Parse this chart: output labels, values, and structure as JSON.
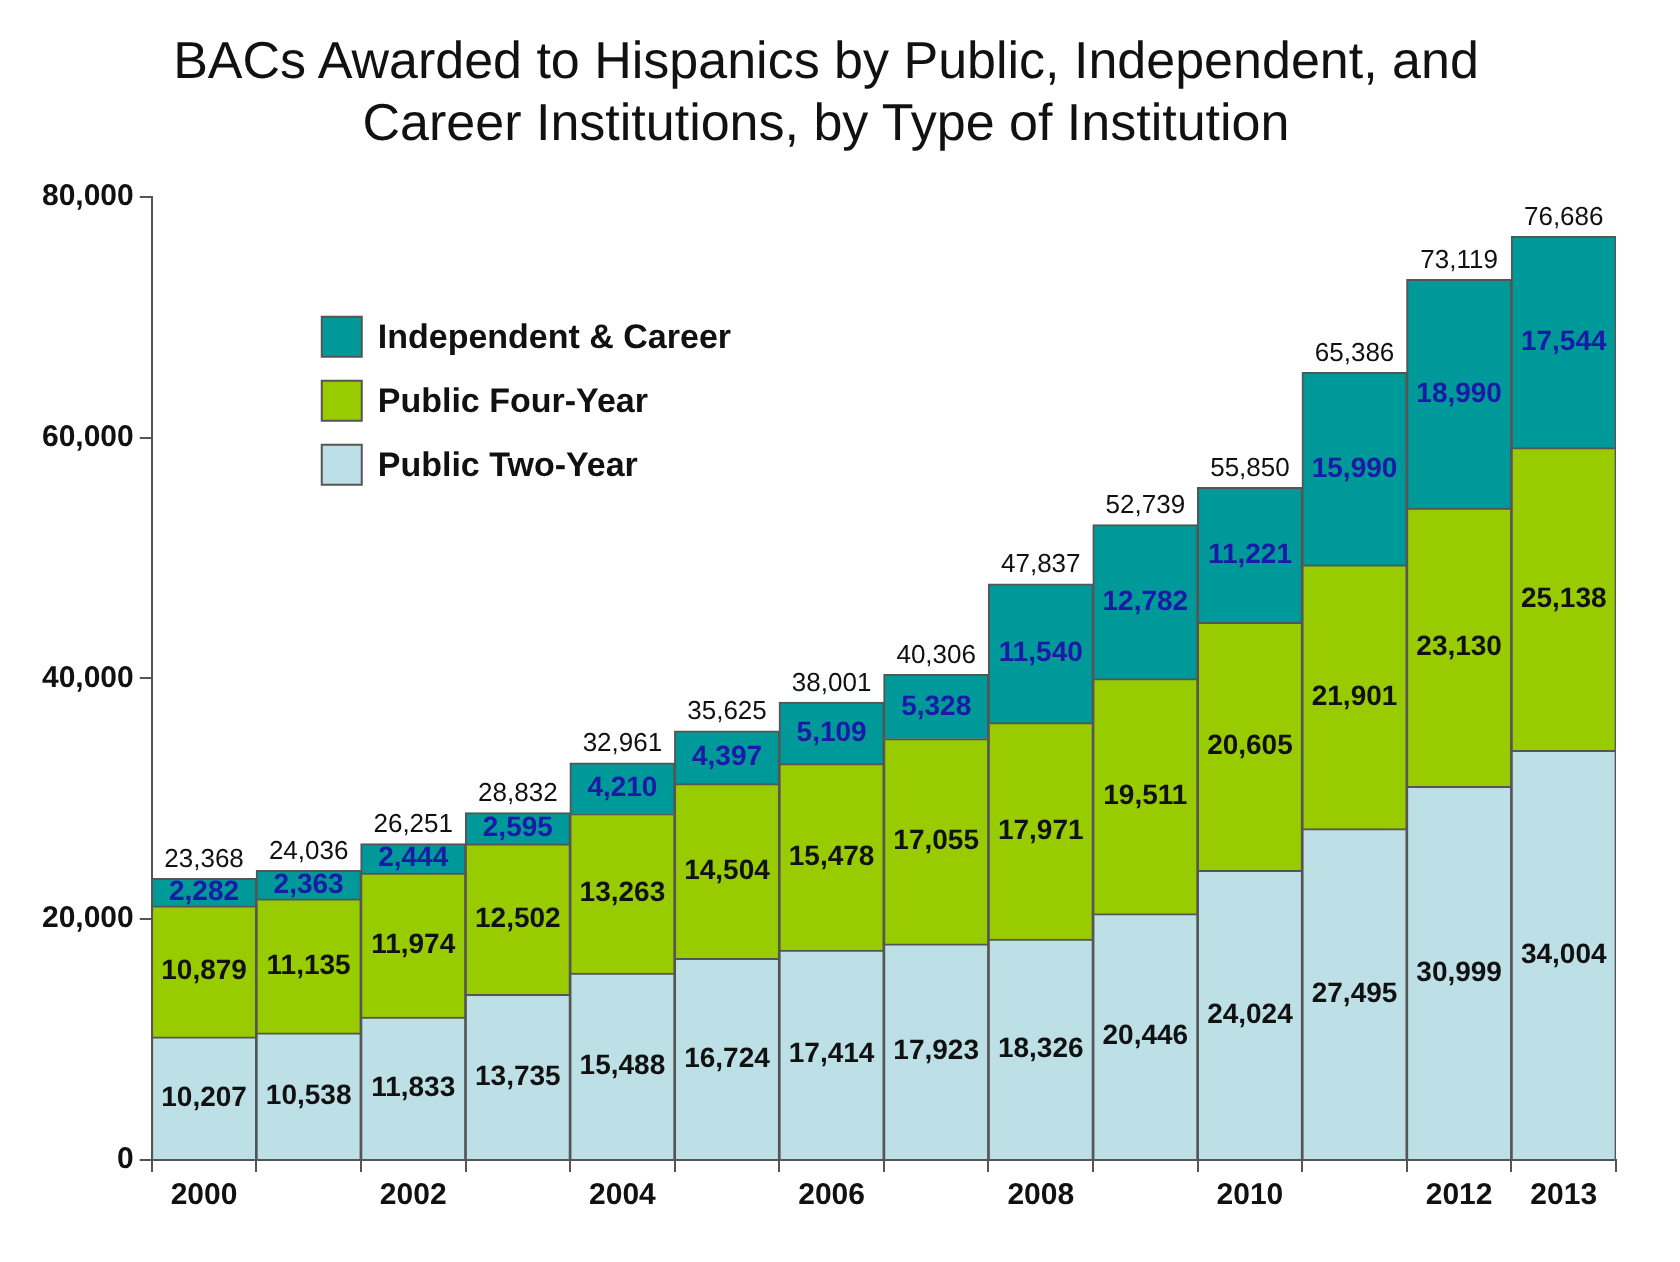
{
  "chart_data": {
    "type": "bar",
    "title": "BACs Awarded to Hispanics by Public, Independent, and Career Institutions, by Type of Institution",
    "stacked": true,
    "categories": [
      "2000",
      null,
      "2002",
      null,
      "2004",
      null,
      "2006",
      null,
      "2008",
      null,
      "2010",
      null,
      "2012",
      "2013"
    ],
    "series": [
      {
        "name": "Public Two-Year",
        "color": "#bde0e6",
        "values": [
          10207,
          10538,
          11833,
          13735,
          15488,
          16724,
          17414,
          17923,
          18326,
          20446,
          24024,
          27495,
          30999,
          34004
        ],
        "value_labels": [
          "10,207",
          "10,538",
          "11,833",
          "13,735",
          "15,488",
          "16,724",
          "17,414",
          "17,923",
          "18,326",
          "20,446",
          "24,024",
          "27,495",
          "30,999",
          "34,004"
        ]
      },
      {
        "name": "Public Four-Year",
        "color": "#99cc00",
        "values": [
          10879,
          11135,
          11974,
          12502,
          13263,
          14504,
          15478,
          17055,
          17971,
          19511,
          20605,
          21901,
          23130,
          25138
        ],
        "value_labels": [
          "10,879",
          "11,135",
          "11,974",
          "12,502",
          "13,263",
          "14,504",
          "15,478",
          "17,055",
          "17,971",
          "19,511",
          "20,605",
          "21,901",
          "23,130",
          "25,138"
        ]
      },
      {
        "name": "Independent & Career",
        "color": "#009999",
        "values": [
          2282,
          2363,
          2444,
          2595,
          4210,
          4397,
          5109,
          5328,
          11540,
          12782,
          11221,
          15990,
          18990,
          17544
        ],
        "value_labels": [
          "2,282",
          "2,363",
          "2,444",
          "2,595",
          "4,210",
          "4,397",
          "5,109",
          "5,328",
          "11,540",
          "12,782",
          "11,221",
          "15,990",
          "18,990",
          "17,544"
        ]
      }
    ],
    "totals": [
      "23,368",
      "24,036",
      "26,251",
      "28,832",
      "32,961",
      "35,625",
      "38,001",
      "40,306",
      "47,837",
      "52,739",
      "55,850",
      "65,386",
      "73,119",
      "76,686"
    ],
    "ylim": [
      0,
      80000
    ],
    "yticks": [
      {
        "value": 0,
        "label": "0"
      },
      {
        "value": 20000,
        "label": "20,000"
      },
      {
        "value": 40000,
        "label": "40,000"
      },
      {
        "value": 60000,
        "label": "60,000"
      },
      {
        "value": 80000,
        "label": "80,000"
      }
    ],
    "grid": false,
    "legend": "top left"
  }
}
